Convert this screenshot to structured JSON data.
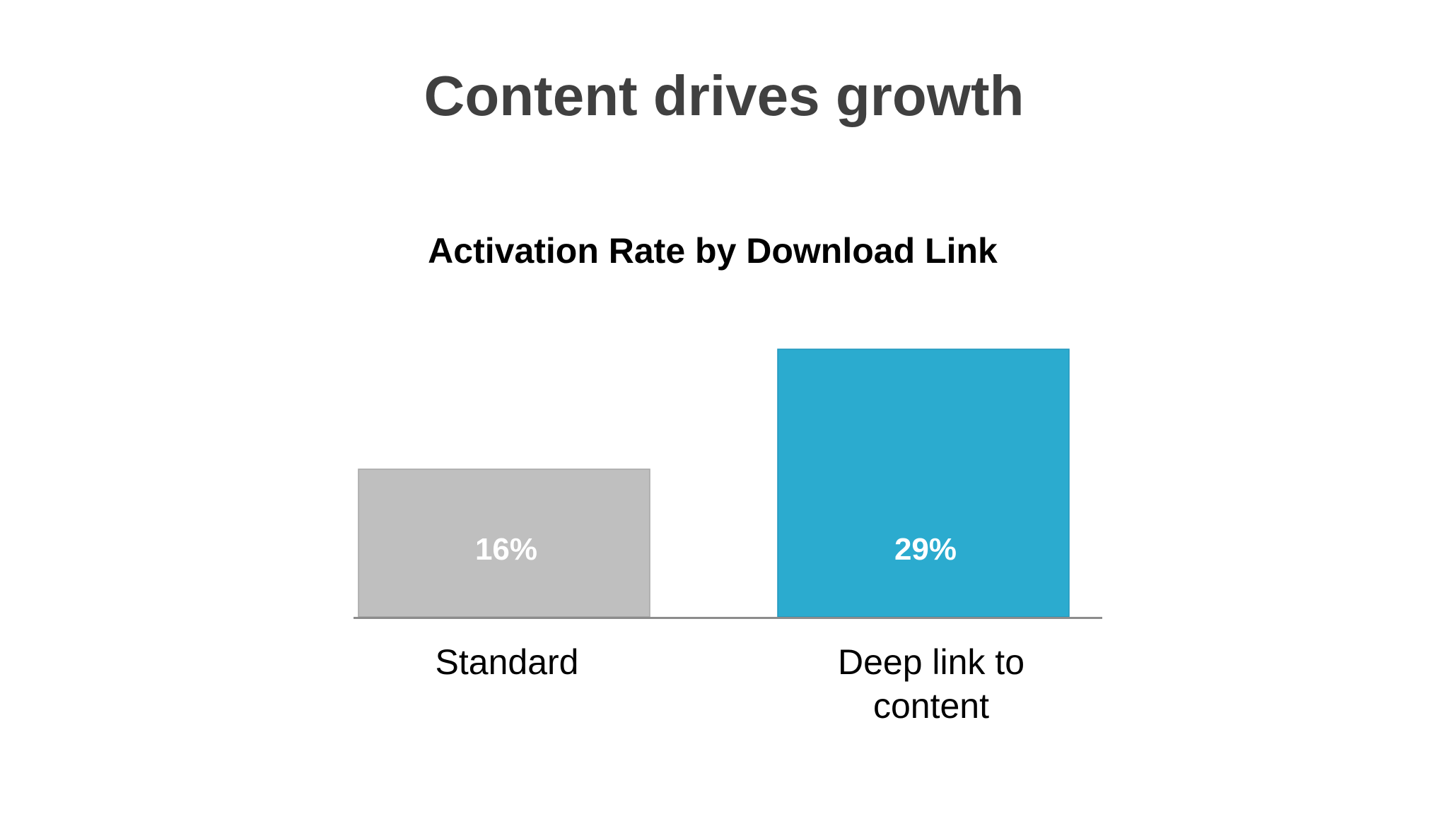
{
  "slide": {
    "title": "Content drives growth"
  },
  "chart_data": {
    "type": "bar",
    "title": "Activation Rate by Download Link",
    "xlabel": "",
    "ylabel": "",
    "categories": [
      "Standard",
      "Deep link to content"
    ],
    "category_lines": [
      [
        "Standard"
      ],
      [
        "Deep link to",
        "content"
      ]
    ],
    "values": [
      16,
      29
    ],
    "value_labels": [
      "16%",
      "29%"
    ],
    "ylim": [
      0,
      32
    ],
    "grid": false,
    "legend": "none",
    "colors": [
      "#bfbfbf",
      "#2babcf"
    ],
    "axis_color": "#8c8c8c"
  }
}
